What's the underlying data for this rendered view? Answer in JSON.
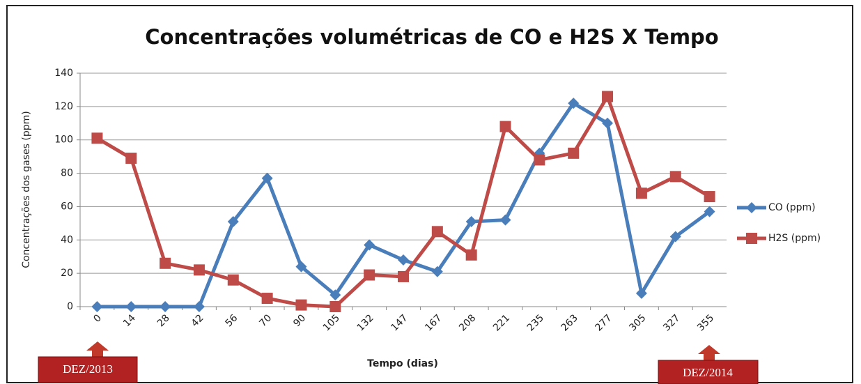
{
  "chart_data": {
    "type": "line",
    "title": "Concentrações volumétricas de CO e H2S X Tempo",
    "x_label": "Tempo (dias)",
    "y_label": "Concentrações dos gases (ppm)",
    "categories": [
      "0",
      "14",
      "28",
      "42",
      "56",
      "70",
      "90",
      "105",
      "132",
      "147",
      "167",
      "208",
      "221",
      "235",
      "263",
      "277",
      "305",
      "327",
      "355"
    ],
    "series": [
      {
        "name": "CO (ppm)",
        "color": "#4a7ebb",
        "marker": "diamond",
        "values": [
          0,
          0,
          0,
          0,
          51,
          77,
          24,
          7,
          37,
          28,
          21,
          51,
          52,
          92,
          122,
          110,
          8,
          42,
          57
        ]
      },
      {
        "name": "H2S (ppm)",
        "color": "#be4b48",
        "marker": "square",
        "values": [
          101,
          89,
          26,
          22,
          16,
          5,
          1,
          0,
          19,
          18,
          45,
          31,
          108,
          88,
          92,
          126,
          68,
          78,
          66
        ]
      }
    ],
    "ylim": [
      0,
      140
    ],
    "yticks": [
      0,
      20,
      40,
      60,
      80,
      100,
      120,
      140
    ],
    "grid": true,
    "legend": "right",
    "annotations": [
      "DEZ/2013",
      "DEZ/2014"
    ]
  }
}
